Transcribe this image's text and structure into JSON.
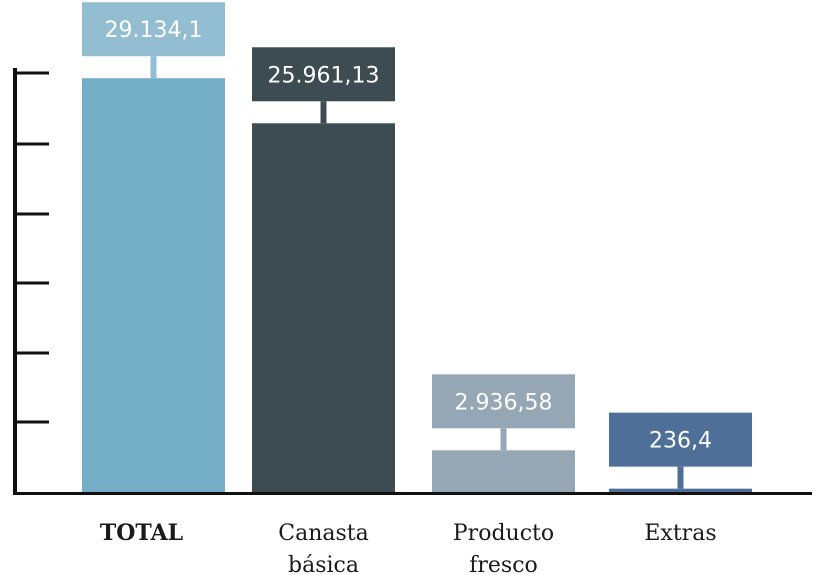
{
  "chart_data": {
    "type": "bar",
    "title": "",
    "xlabel": "",
    "ylabel": "",
    "ylim": [
      0,
      34500
    ],
    "y_ticks_labeled": false,
    "grid": false,
    "legend": "none",
    "categories": [
      {
        "lines": [
          "TOTAL"
        ],
        "bold": true
      },
      {
        "lines": [
          "Canasta",
          "básica"
        ],
        "bold": false
      },
      {
        "lines": [
          "Producto",
          "fresco"
        ],
        "bold": false
      },
      {
        "lines": [
          "Extras"
        ],
        "bold": false
      }
    ],
    "values": [
      29134.1,
      25961.13,
      2936.58,
      236.4
    ],
    "value_labels": [
      "29.134,1",
      "25.961,13",
      "2.936,58",
      "236,4"
    ],
    "bar_colors": [
      "#74adc6",
      "#3d4c52",
      "#95a7b4",
      "#4e6f98"
    ],
    "label_box_colors": [
      "#93bed2",
      "#3d4c52",
      "#95a7b4",
      "#4e6f98"
    ],
    "axis_color": "#111111",
    "tick_values": [
      5000,
      10000,
      15000,
      20000,
      25000,
      30000
    ]
  }
}
